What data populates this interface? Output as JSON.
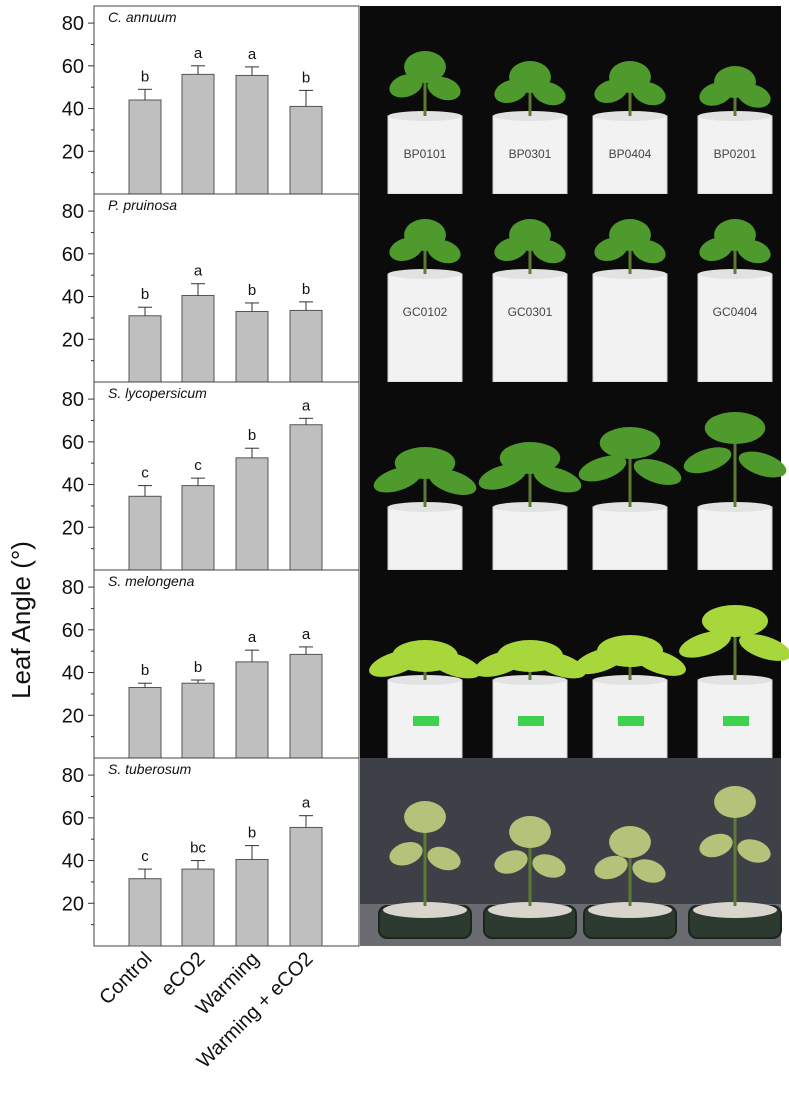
{
  "chart_data": {
    "type": "bar",
    "ylabel": "Leaf Angle (°)",
    "categories": [
      "Control",
      "eCO2",
      "Warming",
      "Warming + eCO2"
    ],
    "yticks": [
      20,
      40,
      60,
      80
    ],
    "ylim": [
      0,
      88
    ],
    "bar_color": "#bfbfbf",
    "panels": [
      {
        "title": "C. annuum",
        "values": [
          44,
          56,
          55.5,
          41
        ],
        "errors": [
          5,
          4,
          4,
          7.5
        ],
        "letters": [
          "b",
          "a",
          "a",
          "b"
        ],
        "photo": {
          "background": "#0b0b0b",
          "pot_labels": [
            "BP0101",
            "BP0301",
            "BP0404",
            "BP0201"
          ]
        }
      },
      {
        "title": "P. pruinosa",
        "values": [
          31,
          40.5,
          33,
          33.5
        ],
        "errors": [
          4,
          5.5,
          4,
          4
        ],
        "letters": [
          "b",
          "a",
          "b",
          "b"
        ],
        "photo": {
          "background": "#0b0b0b",
          "pot_labels": [
            "GC0102",
            "GC0301",
            "",
            "GC0404"
          ]
        }
      },
      {
        "title": "S. lycopersicum",
        "values": [
          34.5,
          39.5,
          52.5,
          68
        ],
        "errors": [
          5,
          3.5,
          4.5,
          3
        ],
        "letters": [
          "c",
          "c",
          "b",
          "a"
        ],
        "photo": {
          "background": "#0b0b0b",
          "pot_labels": []
        }
      },
      {
        "title": "S. melongena",
        "values": [
          33,
          35,
          45,
          48.5
        ],
        "errors": [
          2,
          1.5,
          5.5,
          3.5
        ],
        "letters": [
          "b",
          "b",
          "a",
          "a"
        ],
        "photo": {
          "background": "#0b0b0b",
          "pot_labels": []
        }
      },
      {
        "title": "S. tuberosum",
        "values": [
          31.5,
          36,
          40.5,
          55.5
        ],
        "errors": [
          4.5,
          4,
          6.5,
          5.5
        ],
        "letters": [
          "c",
          "bc",
          "b",
          "a"
        ],
        "photo": {
          "background": "#3e4048",
          "pot_labels": []
        }
      }
    ]
  }
}
